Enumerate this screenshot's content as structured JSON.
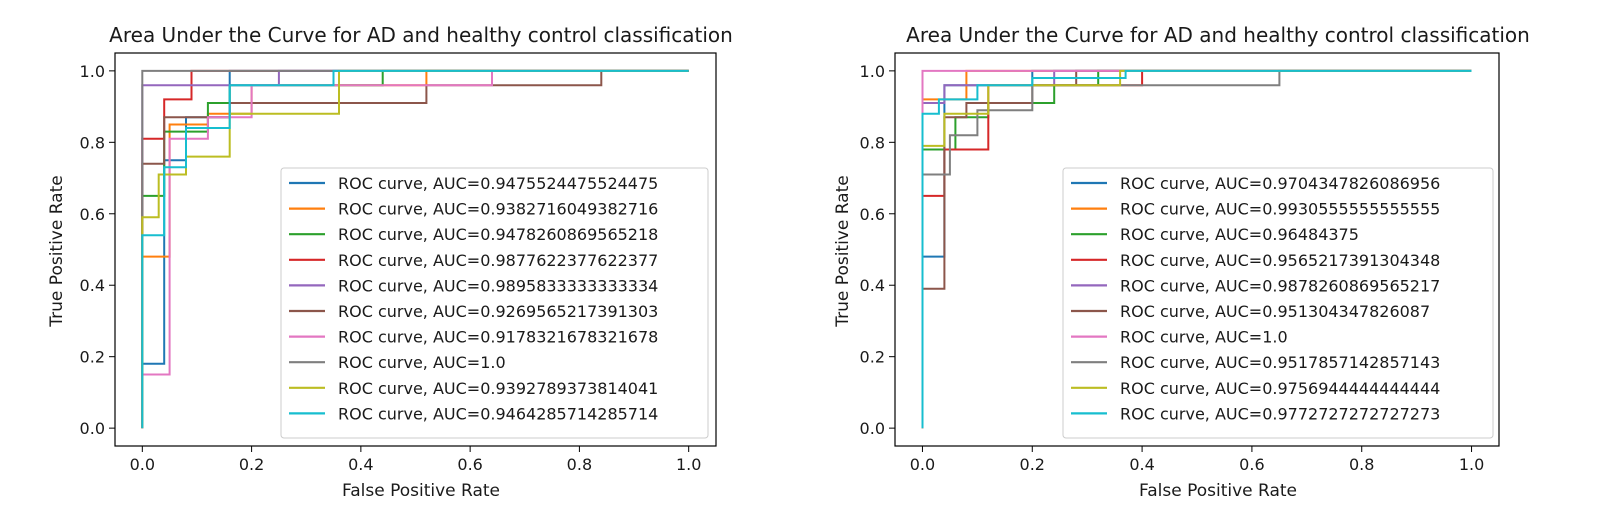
{
  "chart_data": [
    {
      "type": "line",
      "title": "Area Under the Curve for AD and healthy control classification",
      "xlabel": "False Positive Rate",
      "ylabel": "True Positive Rate",
      "xlim": [
        -0.05,
        1.05
      ],
      "ylim": [
        -0.05,
        1.05
      ],
      "xticks": [
        "0.0",
        "0.2",
        "0.4",
        "0.6",
        "0.8",
        "1.0"
      ],
      "yticks": [
        "0.0",
        "0.2",
        "0.4",
        "0.6",
        "0.8",
        "1.0"
      ],
      "legend_position": "lower-right",
      "grid": false,
      "series": [
        {
          "name": "ROC curve, AUC=0.9475524475524475",
          "color": "#1f77b4",
          "x": [
            0,
            0,
            0.04,
            0.04,
            0.08,
            0.08,
            0.16,
            0.16,
            1
          ],
          "y": [
            0,
            0.18,
            0.18,
            0.75,
            0.75,
            0.87,
            0.87,
            1.0,
            1.0
          ]
        },
        {
          "name": "ROC curve, AUC=0.9382716049382716",
          "color": "#ff7f0e",
          "x": [
            0,
            0,
            0.05,
            0.05,
            0.12,
            0.12,
            0.2,
            0.2,
            0.52,
            0.52,
            1
          ],
          "y": [
            0,
            0.48,
            0.48,
            0.85,
            0.85,
            0.88,
            0.88,
            0.96,
            0.96,
            1.0,
            1.0
          ]
        },
        {
          "name": "ROC curve, AUC=0.9478260869565218",
          "color": "#2ca02c",
          "x": [
            0,
            0,
            0.04,
            0.04,
            0.12,
            0.12,
            0.16,
            0.16,
            0.44,
            0.44,
            1
          ],
          "y": [
            0,
            0.65,
            0.65,
            0.83,
            0.83,
            0.91,
            0.91,
            0.96,
            0.96,
            1.0,
            1.0
          ]
        },
        {
          "name": "ROC curve, AUC=0.9877622377622377",
          "color": "#d62728",
          "x": [
            0,
            0,
            0.04,
            0.04,
            0.09,
            0.09,
            1
          ],
          "y": [
            0,
            0.81,
            0.81,
            0.92,
            0.92,
            1.0,
            1.0
          ]
        },
        {
          "name": "ROC curve, AUC=0.9895833333333334",
          "color": "#9467bd",
          "x": [
            0,
            0,
            0.25,
            0.25,
            1
          ],
          "y": [
            0,
            0.96,
            0.96,
            1.0,
            1.0
          ]
        },
        {
          "name": "ROC curve, AUC=0.9269565217391303",
          "color": "#8c564b",
          "x": [
            0,
            0,
            0.04,
            0.04,
            0.16,
            0.16,
            0.52,
            0.52,
            0.84,
            0.84,
            1
          ],
          "y": [
            0,
            0.74,
            0.74,
            0.87,
            0.87,
            0.91,
            0.91,
            0.96,
            0.96,
            1.0,
            1.0
          ]
        },
        {
          "name": "ROC curve, AUC=0.9178321678321678",
          "color": "#e377c2",
          "x": [
            0,
            0,
            0.05,
            0.05,
            0.12,
            0.12,
            0.2,
            0.2,
            0.64,
            0.64,
            1
          ],
          "y": [
            0,
            0.15,
            0.15,
            0.81,
            0.81,
            0.87,
            0.87,
            0.96,
            0.96,
            1.0,
            1.0
          ]
        },
        {
          "name": "ROC curve, AUC=1.0",
          "color": "#7f7f7f",
          "x": [
            0,
            0,
            1
          ],
          "y": [
            0,
            1.0,
            1.0
          ]
        },
        {
          "name": "ROC curve, AUC=0.9392789373814041",
          "color": "#bcbd22",
          "x": [
            0,
            0,
            0.03,
            0.03,
            0.08,
            0.08,
            0.16,
            0.16,
            0.36,
            0.36,
            1
          ],
          "y": [
            0,
            0.59,
            0.59,
            0.71,
            0.71,
            0.76,
            0.76,
            0.88,
            0.88,
            1.0,
            1.0
          ]
        },
        {
          "name": "ROC curve, AUC=0.9464285714285714",
          "color": "#17becf",
          "x": [
            0,
            0,
            0.04,
            0.04,
            0.08,
            0.08,
            0.16,
            0.16,
            0.35,
            0.35,
            1
          ],
          "y": [
            0,
            0.54,
            0.54,
            0.73,
            0.73,
            0.84,
            0.84,
            0.96,
            0.96,
            1.0,
            1.0
          ]
        }
      ]
    },
    {
      "type": "line",
      "title": "Area Under the Curve for AD and healthy control classification",
      "xlabel": "False Positive Rate",
      "ylabel": "True Positive Rate",
      "xlim": [
        -0.05,
        1.05
      ],
      "ylim": [
        -0.05,
        1.05
      ],
      "xticks": [
        "0.0",
        "0.2",
        "0.4",
        "0.6",
        "0.8",
        "1.0"
      ],
      "yticks": [
        "0.0",
        "0.2",
        "0.4",
        "0.6",
        "0.8",
        "1.0"
      ],
      "legend_position": "lower-right",
      "grid": false,
      "series": [
        {
          "name": "ROC curve, AUC=0.9704347826086956",
          "color": "#1f77b4",
          "x": [
            0,
            0,
            0.04,
            0.04,
            0.2,
            0.2,
            1
          ],
          "y": [
            0,
            0.48,
            0.48,
            0.96,
            0.96,
            1.0,
            1.0
          ]
        },
        {
          "name": "ROC curve, AUC=0.9930555555555555",
          "color": "#ff7f0e",
          "x": [
            0,
            0,
            0.08,
            0.08,
            1
          ],
          "y": [
            0,
            0.92,
            0.92,
            1.0,
            1.0
          ]
        },
        {
          "name": "ROC curve, AUC=0.96484375",
          "color": "#2ca02c",
          "x": [
            0,
            0,
            0.06,
            0.06,
            0.12,
            0.12,
            0.24,
            0.24,
            0.32,
            0.32,
            1
          ],
          "y": [
            0,
            0.78,
            0.78,
            0.87,
            0.87,
            0.91,
            0.91,
            0.96,
            0.96,
            1.0,
            1.0
          ]
        },
        {
          "name": "ROC curve, AUC=0.9565217391304348",
          "color": "#d62728",
          "x": [
            0,
            0,
            0.04,
            0.04,
            0.12,
            0.12,
            0.4,
            0.4,
            1
          ],
          "y": [
            0,
            0.65,
            0.65,
            0.78,
            0.78,
            0.96,
            0.96,
            1.0,
            1.0
          ]
        },
        {
          "name": "ROC curve, AUC=0.9878260869565217",
          "color": "#9467bd",
          "x": [
            0,
            0,
            0.04,
            0.04,
            0.24,
            0.24,
            1
          ],
          "y": [
            0,
            0.91,
            0.91,
            0.96,
            0.96,
            1.0,
            1.0
          ]
        },
        {
          "name": "ROC curve, AUC=0.951304347826087",
          "color": "#8c564b",
          "x": [
            0,
            0,
            0.04,
            0.04,
            0.08,
            0.08,
            0.2,
            0.2,
            0.28,
            0.28,
            1
          ],
          "y": [
            0,
            0.39,
            0.39,
            0.87,
            0.87,
            0.91,
            0.91,
            0.96,
            0.96,
            1.0,
            1.0
          ]
        },
        {
          "name": "ROC curve, AUC=1.0",
          "color": "#e377c2",
          "x": [
            0,
            0,
            1
          ],
          "y": [
            0,
            1.0,
            1.0
          ]
        },
        {
          "name": "ROC curve, AUC=0.9517857142857143",
          "color": "#7f7f7f",
          "x": [
            0,
            0,
            0.05,
            0.05,
            0.1,
            0.1,
            0.2,
            0.2,
            0.65,
            0.65,
            1
          ],
          "y": [
            0,
            0.71,
            0.71,
            0.82,
            0.82,
            0.89,
            0.89,
            0.96,
            0.96,
            1.0,
            1.0
          ]
        },
        {
          "name": "ROC curve, AUC=0.9756944444444444",
          "color": "#bcbd22",
          "x": [
            0,
            0,
            0.04,
            0.04,
            0.12,
            0.12,
            0.36,
            0.36,
            1
          ],
          "y": [
            0,
            0.79,
            0.79,
            0.88,
            0.88,
            0.96,
            0.96,
            1.0,
            1.0
          ]
        },
        {
          "name": "ROC curve, AUC=0.9772727272727273",
          "color": "#17becf",
          "x": [
            0,
            0,
            0.03,
            0.03,
            0.1,
            0.1,
            0.2,
            0.2,
            0.37,
            0.37,
            1
          ],
          "y": [
            0,
            0.88,
            0.88,
            0.92,
            0.92,
            0.96,
            0.96,
            0.98,
            0.98,
            1.0,
            1.0
          ]
        }
      ]
    }
  ]
}
